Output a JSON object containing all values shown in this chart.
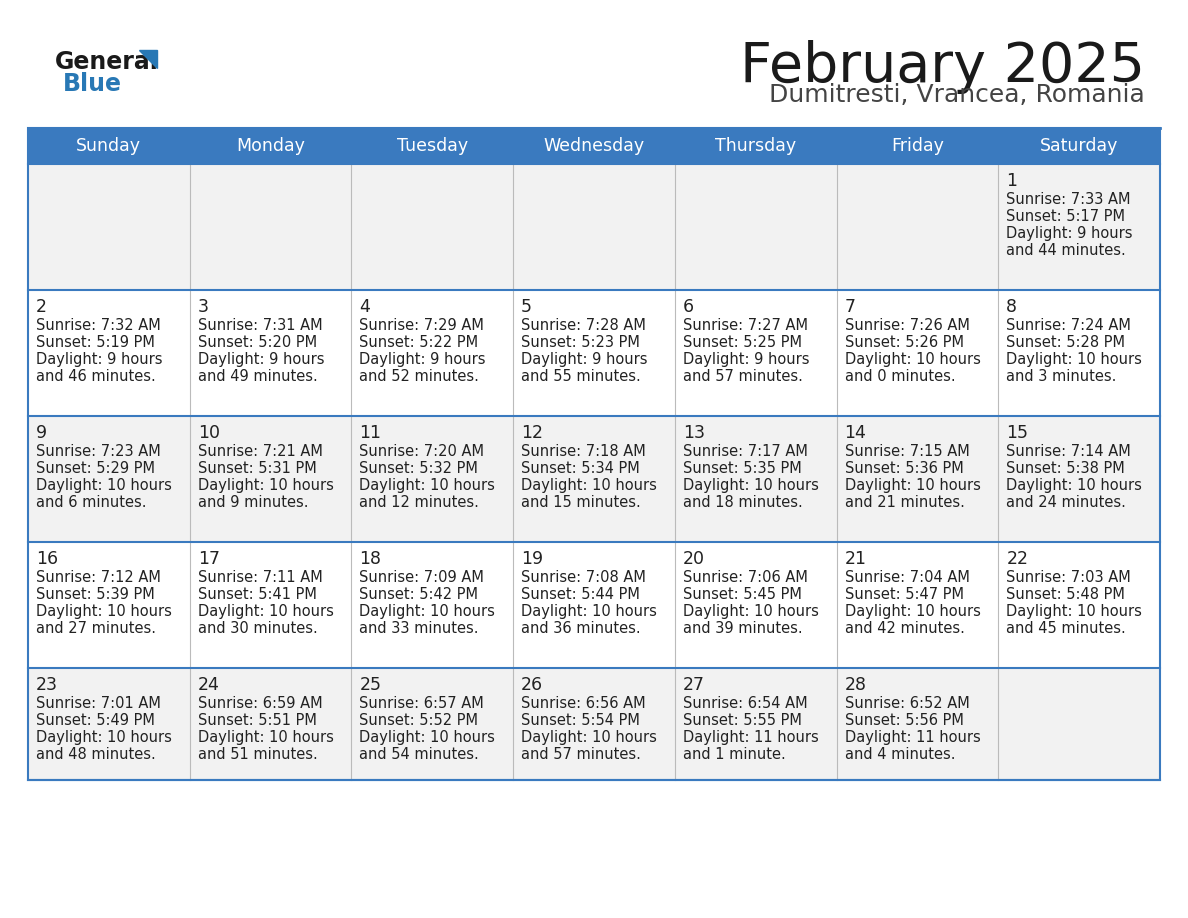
{
  "title": "February 2025",
  "subtitle": "Dumitresti, Vrancea, Romania",
  "header_bg": "#3a7abf",
  "header_text": "#ffffff",
  "cell_bg_light": "#f2f2f2",
  "cell_bg_white": "#ffffff",
  "border_color": "#3a7abf",
  "text_color": "#222222",
  "day_headers": [
    "Sunday",
    "Monday",
    "Tuesday",
    "Wednesday",
    "Thursday",
    "Friday",
    "Saturday"
  ],
  "days": [
    {
      "day": 1,
      "col": 6,
      "row": 0,
      "sunrise": "7:33 AM",
      "sunset": "5:17 PM",
      "daylight_h": "9 hours",
      "daylight_m": "44 minutes."
    },
    {
      "day": 2,
      "col": 0,
      "row": 1,
      "sunrise": "7:32 AM",
      "sunset": "5:19 PM",
      "daylight_h": "9 hours",
      "daylight_m": "46 minutes."
    },
    {
      "day": 3,
      "col": 1,
      "row": 1,
      "sunrise": "7:31 AM",
      "sunset": "5:20 PM",
      "daylight_h": "9 hours",
      "daylight_m": "49 minutes."
    },
    {
      "day": 4,
      "col": 2,
      "row": 1,
      "sunrise": "7:29 AM",
      "sunset": "5:22 PM",
      "daylight_h": "9 hours",
      "daylight_m": "52 minutes."
    },
    {
      "day": 5,
      "col": 3,
      "row": 1,
      "sunrise": "7:28 AM",
      "sunset": "5:23 PM",
      "daylight_h": "9 hours",
      "daylight_m": "55 minutes."
    },
    {
      "day": 6,
      "col": 4,
      "row": 1,
      "sunrise": "7:27 AM",
      "sunset": "5:25 PM",
      "daylight_h": "9 hours",
      "daylight_m": "57 minutes."
    },
    {
      "day": 7,
      "col": 5,
      "row": 1,
      "sunrise": "7:26 AM",
      "sunset": "5:26 PM",
      "daylight_h": "10 hours",
      "daylight_m": "0 minutes."
    },
    {
      "day": 8,
      "col": 6,
      "row": 1,
      "sunrise": "7:24 AM",
      "sunset": "5:28 PM",
      "daylight_h": "10 hours",
      "daylight_m": "3 minutes."
    },
    {
      "day": 9,
      "col": 0,
      "row": 2,
      "sunrise": "7:23 AM",
      "sunset": "5:29 PM",
      "daylight_h": "10 hours",
      "daylight_m": "6 minutes."
    },
    {
      "day": 10,
      "col": 1,
      "row": 2,
      "sunrise": "7:21 AM",
      "sunset": "5:31 PM",
      "daylight_h": "10 hours",
      "daylight_m": "9 minutes."
    },
    {
      "day": 11,
      "col": 2,
      "row": 2,
      "sunrise": "7:20 AM",
      "sunset": "5:32 PM",
      "daylight_h": "10 hours",
      "daylight_m": "12 minutes."
    },
    {
      "day": 12,
      "col": 3,
      "row": 2,
      "sunrise": "7:18 AM",
      "sunset": "5:34 PM",
      "daylight_h": "10 hours",
      "daylight_m": "15 minutes."
    },
    {
      "day": 13,
      "col": 4,
      "row": 2,
      "sunrise": "7:17 AM",
      "sunset": "5:35 PM",
      "daylight_h": "10 hours",
      "daylight_m": "18 minutes."
    },
    {
      "day": 14,
      "col": 5,
      "row": 2,
      "sunrise": "7:15 AM",
      "sunset": "5:36 PM",
      "daylight_h": "10 hours",
      "daylight_m": "21 minutes."
    },
    {
      "day": 15,
      "col": 6,
      "row": 2,
      "sunrise": "7:14 AM",
      "sunset": "5:38 PM",
      "daylight_h": "10 hours",
      "daylight_m": "24 minutes."
    },
    {
      "day": 16,
      "col": 0,
      "row": 3,
      "sunrise": "7:12 AM",
      "sunset": "5:39 PM",
      "daylight_h": "10 hours",
      "daylight_m": "27 minutes."
    },
    {
      "day": 17,
      "col": 1,
      "row": 3,
      "sunrise": "7:11 AM",
      "sunset": "5:41 PM",
      "daylight_h": "10 hours",
      "daylight_m": "30 minutes."
    },
    {
      "day": 18,
      "col": 2,
      "row": 3,
      "sunrise": "7:09 AM",
      "sunset": "5:42 PM",
      "daylight_h": "10 hours",
      "daylight_m": "33 minutes."
    },
    {
      "day": 19,
      "col": 3,
      "row": 3,
      "sunrise": "7:08 AM",
      "sunset": "5:44 PM",
      "daylight_h": "10 hours",
      "daylight_m": "36 minutes."
    },
    {
      "day": 20,
      "col": 4,
      "row": 3,
      "sunrise": "7:06 AM",
      "sunset": "5:45 PM",
      "daylight_h": "10 hours",
      "daylight_m": "39 minutes."
    },
    {
      "day": 21,
      "col": 5,
      "row": 3,
      "sunrise": "7:04 AM",
      "sunset": "5:47 PM",
      "daylight_h": "10 hours",
      "daylight_m": "42 minutes."
    },
    {
      "day": 22,
      "col": 6,
      "row": 3,
      "sunrise": "7:03 AM",
      "sunset": "5:48 PM",
      "daylight_h": "10 hours",
      "daylight_m": "45 minutes."
    },
    {
      "day": 23,
      "col": 0,
      "row": 4,
      "sunrise": "7:01 AM",
      "sunset": "5:49 PM",
      "daylight_h": "10 hours",
      "daylight_m": "48 minutes."
    },
    {
      "day": 24,
      "col": 1,
      "row": 4,
      "sunrise": "6:59 AM",
      "sunset": "5:51 PM",
      "daylight_h": "10 hours",
      "daylight_m": "51 minutes."
    },
    {
      "day": 25,
      "col": 2,
      "row": 4,
      "sunrise": "6:57 AM",
      "sunset": "5:52 PM",
      "daylight_h": "10 hours",
      "daylight_m": "54 minutes."
    },
    {
      "day": 26,
      "col": 3,
      "row": 4,
      "sunrise": "6:56 AM",
      "sunset": "5:54 PM",
      "daylight_h": "10 hours",
      "daylight_m": "57 minutes."
    },
    {
      "day": 27,
      "col": 4,
      "row": 4,
      "sunrise": "6:54 AM",
      "sunset": "5:55 PM",
      "daylight_h": "11 hours",
      "daylight_m": "1 minute."
    },
    {
      "day": 28,
      "col": 5,
      "row": 4,
      "sunrise": "6:52 AM",
      "sunset": "5:56 PM",
      "daylight_h": "11 hours",
      "daylight_m": "4 minutes."
    }
  ]
}
